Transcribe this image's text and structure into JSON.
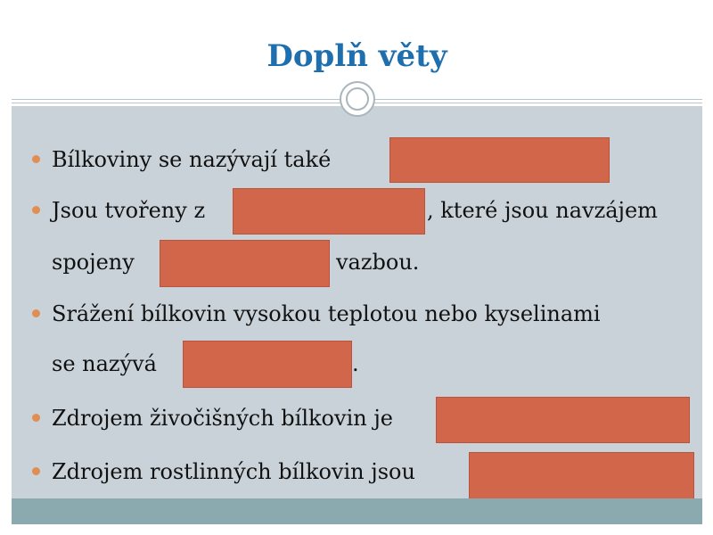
{
  "slide": {
    "title": "Doplň věty",
    "items": [
      {
        "line1": "Bílkoviny se nazývají také"
      },
      {
        "line1_a": "Jsou tvořeny z",
        "line1_b": ", které jsou navzájem",
        "line2_a": "spojeny",
        "line2_b": "vazbou."
      },
      {
        "line1": "Srážení bílkovin vysokou teplotou nebo kyselinami",
        "line2_a": "se nazývá",
        "line2_b": "."
      },
      {
        "line1": "Zdrojem živočišných bílkovin je"
      },
      {
        "line1": " Zdrojem rostlinných bílkovin jsou"
      }
    ]
  },
  "colors": {
    "title": "#1f6fae",
    "body_background": "#c9d2d8",
    "footer": "#8aaab0",
    "bullet": "#e08e54",
    "blank_box": "#d1664a"
  }
}
